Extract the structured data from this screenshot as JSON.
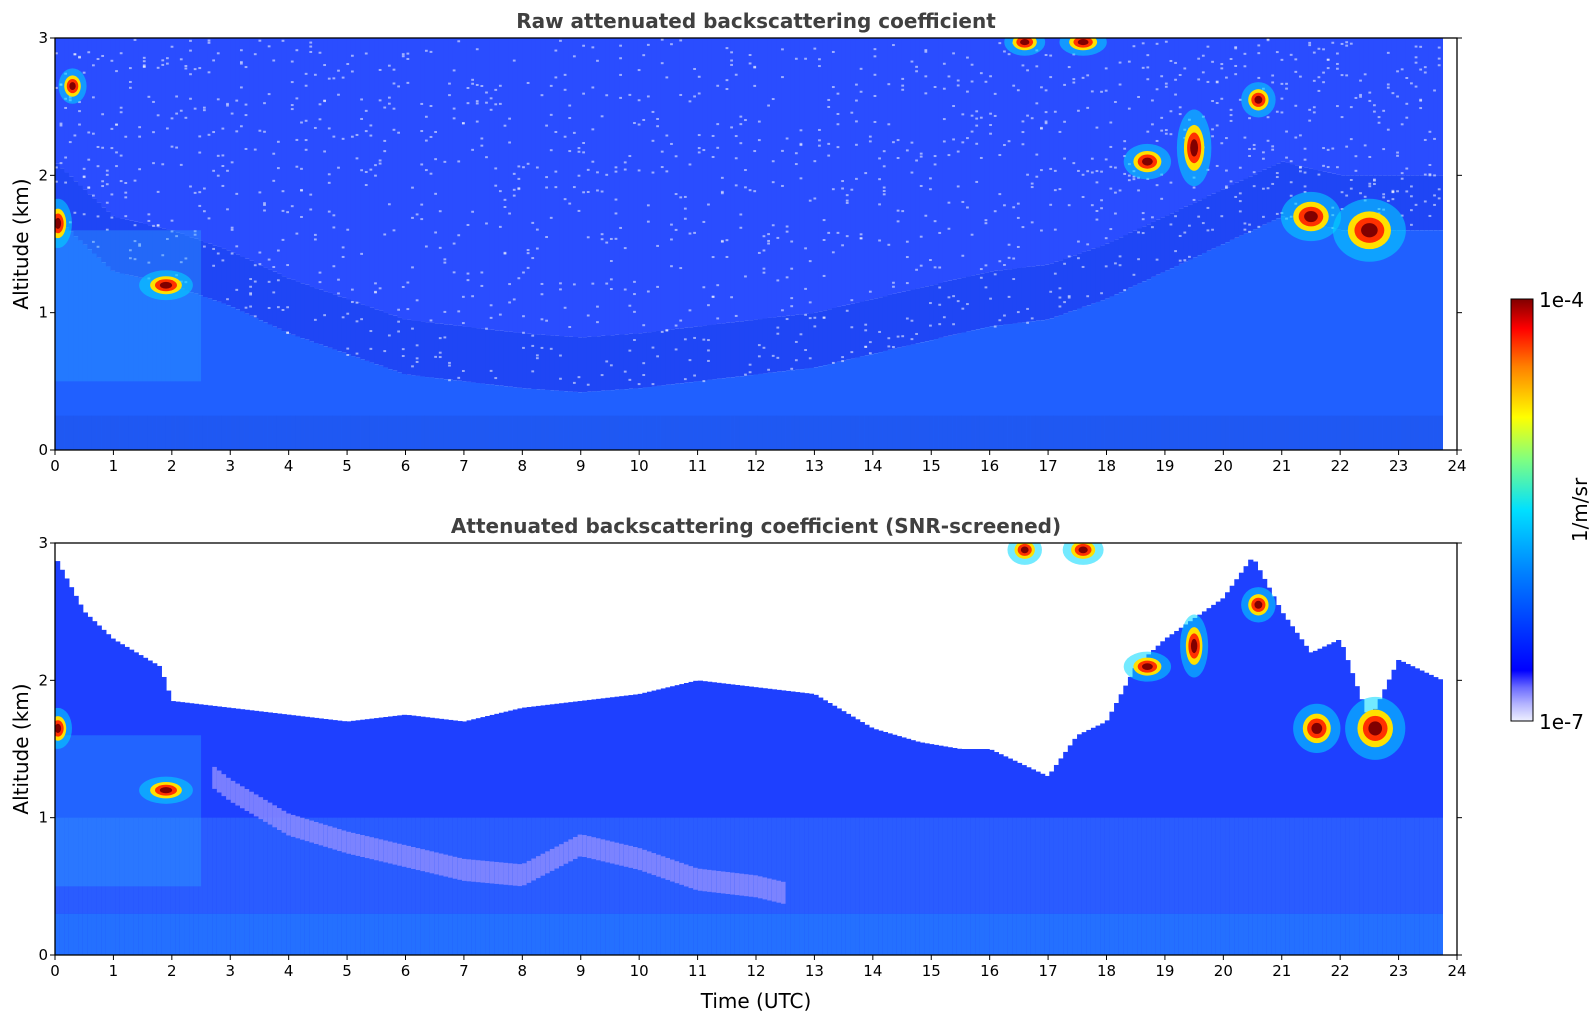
{
  "chart_data": [
    {
      "type": "heatmap",
      "title": "Raw attenuated backscattering coefficient",
      "xlabel": "",
      "ylabel": "Altitude (km)",
      "xlim": [
        0,
        24
      ],
      "ylim": [
        0,
        3
      ],
      "x_ticks": [
        "0",
        "1",
        "2",
        "3",
        "4",
        "5",
        "6",
        "7",
        "8",
        "9",
        "10",
        "11",
        "12",
        "13",
        "14",
        "15",
        "16",
        "17",
        "18",
        "19",
        "20",
        "21",
        "22",
        "23",
        "24"
      ],
      "y_ticks": [
        "0",
        "1",
        "2",
        "3"
      ],
      "data_end_time": 23.75,
      "color_scale": "log",
      "noisy_unscreened": true,
      "boundary_layer_top_km": [
        [
          0,
          1.7
        ],
        [
          1,
          1.3
        ],
        [
          2,
          1.2
        ],
        [
          3,
          1.05
        ],
        [
          4,
          0.85
        ],
        [
          5,
          0.7
        ],
        [
          6,
          0.55
        ],
        [
          7,
          0.5
        ],
        [
          8,
          0.45
        ],
        [
          9,
          0.42
        ],
        [
          10,
          0.45
        ],
        [
          11,
          0.5
        ],
        [
          12,
          0.55
        ],
        [
          13,
          0.6
        ],
        [
          14,
          0.7
        ],
        [
          15,
          0.8
        ],
        [
          16,
          0.9
        ],
        [
          17,
          0.95
        ],
        [
          18,
          1.1
        ],
        [
          19,
          1.3
        ],
        [
          20,
          1.5
        ],
        [
          21,
          1.7
        ],
        [
          22,
          1.6
        ],
        [
          23,
          1.6
        ],
        [
          23.75,
          1.6
        ]
      ],
      "clouds": [
        {
          "t": 0.05,
          "z": 1.65,
          "dt": 0.15,
          "dz": 0.15
        },
        {
          "t": 0.3,
          "z": 2.65,
          "dt": 0.15,
          "dz": 0.1
        },
        {
          "t": 1.9,
          "z": 1.2,
          "dt": 0.35,
          "dz": 0.08
        },
        {
          "t": 16.6,
          "z": 2.97,
          "dt": 0.25,
          "dz": 0.07
        },
        {
          "t": 17.6,
          "z": 2.97,
          "dt": 0.3,
          "dz": 0.07
        },
        {
          "t": 18.7,
          "z": 2.1,
          "dt": 0.3,
          "dz": 0.1
        },
        {
          "t": 19.5,
          "z": 2.2,
          "dt": 0.2,
          "dz": 0.25
        },
        {
          "t": 20.6,
          "z": 2.55,
          "dt": 0.2,
          "dz": 0.1
        },
        {
          "t": 21.5,
          "z": 1.7,
          "dt": 0.4,
          "dz": 0.15
        },
        {
          "t": 22.5,
          "z": 1.6,
          "dt": 0.5,
          "dz": 0.2
        }
      ]
    },
    {
      "type": "heatmap",
      "title": "Attenuated backscattering coefficient (SNR-screened)",
      "xlabel": "Time (UTC)",
      "ylabel": "Altitude (km)",
      "xlim": [
        0,
        24
      ],
      "ylim": [
        0,
        3
      ],
      "x_ticks": [
        "0",
        "1",
        "2",
        "3",
        "4",
        "5",
        "6",
        "7",
        "8",
        "9",
        "10",
        "11",
        "12",
        "13",
        "14",
        "15",
        "16",
        "17",
        "18",
        "19",
        "20",
        "21",
        "22",
        "23",
        "24"
      ],
      "y_ticks": [
        "0",
        "1",
        "2",
        "3"
      ],
      "data_end_time": 23.75,
      "color_scale": "log",
      "screened_top_km": [
        [
          0,
          2.9
        ],
        [
          0.5,
          2.5
        ],
        [
          1,
          2.3
        ],
        [
          1.8,
          2.1
        ],
        [
          2,
          1.85
        ],
        [
          3,
          1.8
        ],
        [
          4,
          1.75
        ],
        [
          5,
          1.7
        ],
        [
          6,
          1.75
        ],
        [
          7,
          1.7
        ],
        [
          8,
          1.8
        ],
        [
          9,
          1.85
        ],
        [
          10,
          1.9
        ],
        [
          11,
          2.0
        ],
        [
          12,
          1.95
        ],
        [
          13,
          1.9
        ],
        [
          14,
          1.65
        ],
        [
          14.8,
          1.55
        ],
        [
          15.5,
          1.5
        ],
        [
          16,
          1.5
        ],
        [
          17,
          1.3
        ],
        [
          17.5,
          1.6
        ],
        [
          18,
          1.7
        ],
        [
          18.5,
          2.1
        ],
        [
          19,
          2.3
        ],
        [
          20,
          2.6
        ],
        [
          20.5,
          2.9
        ],
        [
          21,
          2.5
        ],
        [
          21.5,
          2.2
        ],
        [
          22,
          2.3
        ],
        [
          22.5,
          1.7
        ],
        [
          23,
          2.15
        ],
        [
          23.75,
          2.0
        ]
      ],
      "aerosol_band": [
        [
          2.7,
          1.3
        ],
        [
          3,
          1.2
        ],
        [
          4,
          0.95
        ],
        [
          5,
          0.82
        ],
        [
          6,
          0.72
        ],
        [
          7,
          0.62
        ],
        [
          8,
          0.58
        ],
        [
          9,
          0.8
        ],
        [
          10,
          0.7
        ],
        [
          11,
          0.55
        ],
        [
          12,
          0.5
        ],
        [
          12.5,
          0.45
        ]
      ],
      "clouds": [
        {
          "t": 0.05,
          "z": 1.65,
          "dt": 0.15,
          "dz": 0.12
        },
        {
          "t": 1.9,
          "z": 1.2,
          "dt": 0.35,
          "dz": 0.07
        },
        {
          "t": 16.6,
          "z": 2.95,
          "dt": 0.2,
          "dz": 0.08
        },
        {
          "t": 17.6,
          "z": 2.95,
          "dt": 0.25,
          "dz": 0.08
        },
        {
          "t": 18.7,
          "z": 2.1,
          "dt": 0.3,
          "dz": 0.08
        },
        {
          "t": 19.5,
          "z": 2.25,
          "dt": 0.15,
          "dz": 0.2
        },
        {
          "t": 20.6,
          "z": 2.55,
          "dt": 0.2,
          "dz": 0.1
        },
        {
          "t": 21.6,
          "z": 1.65,
          "dt": 0.3,
          "dz": 0.15
        },
        {
          "t": 22.6,
          "z": 1.65,
          "dt": 0.4,
          "dz": 0.2
        }
      ]
    }
  ],
  "colorbar": {
    "label": "1/m/sr",
    "max_label": "1e-4",
    "min_label": "1e-7",
    "colormap": "jet",
    "low_colors": [
      "#f0f0ff",
      "#c8c8ff",
      "#a0a0ff",
      "#7878ff",
      "#4b4bff"
    ],
    "background_noise_color": "#1a3dff"
  }
}
